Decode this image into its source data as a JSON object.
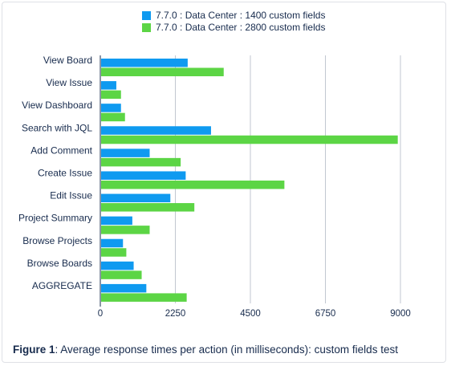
{
  "chart_data": {
    "type": "bar",
    "orientation": "horizontal",
    "title": "",
    "xlabel": "",
    "ylabel": "",
    "categories": [
      "View Board",
      "View Issue",
      "View Dashboard",
      "Search with JQL",
      "Add Comment",
      "Create Issue",
      "Edit Issue",
      "Project Summary",
      "Browse Projects",
      "Browse Boards",
      "AGGREGATE"
    ],
    "series": [
      {
        "name": "7.7.0 : Data Center : 1400 custom fields",
        "color": "#0f9af0",
        "values": [
          2620,
          480,
          620,
          3320,
          1480,
          2560,
          2100,
          960,
          680,
          1000,
          1380
        ]
      },
      {
        "name": "7.7.0 : Data Center : 2800 custom fields",
        "color": "#5cd545",
        "values": [
          3700,
          620,
          740,
          8920,
          2410,
          5520,
          2820,
          1480,
          780,
          1240,
          2590
        ]
      }
    ],
    "xlim": [
      0,
      9000
    ],
    "xticks": [
      "0",
      "2250",
      "4500",
      "6750",
      "9000"
    ],
    "grid": "vertical",
    "legend_position": "top"
  },
  "caption": {
    "label": "Figure 1",
    "text": ": Average response times per action (in milliseconds): custom fields test"
  }
}
